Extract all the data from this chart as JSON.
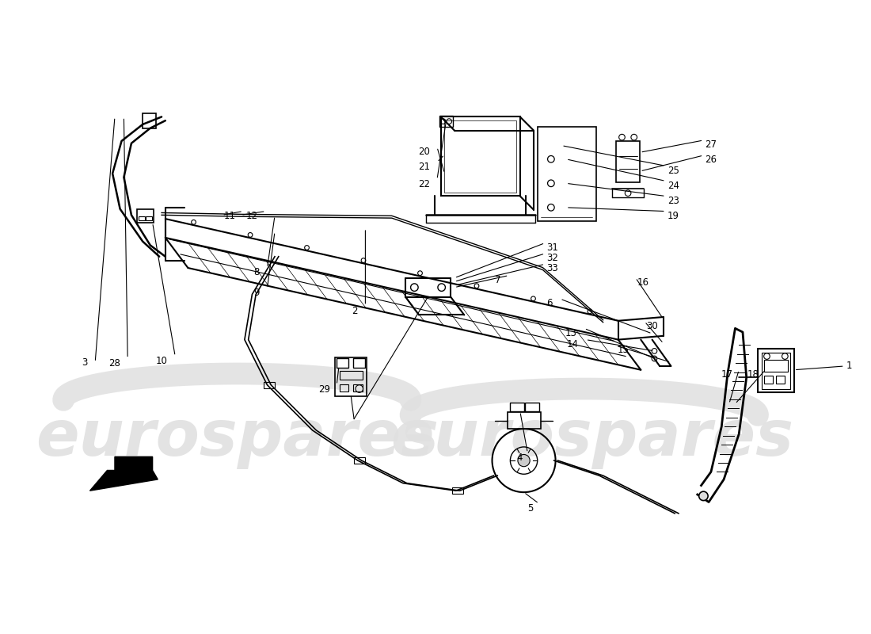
{
  "bg_color": "#ffffff",
  "wm_color": "#e0e0e0",
  "lc": "#000000",
  "wm_text": "eurospares",
  "figsize": [
    11.0,
    8.0
  ],
  "dpi": 100
}
